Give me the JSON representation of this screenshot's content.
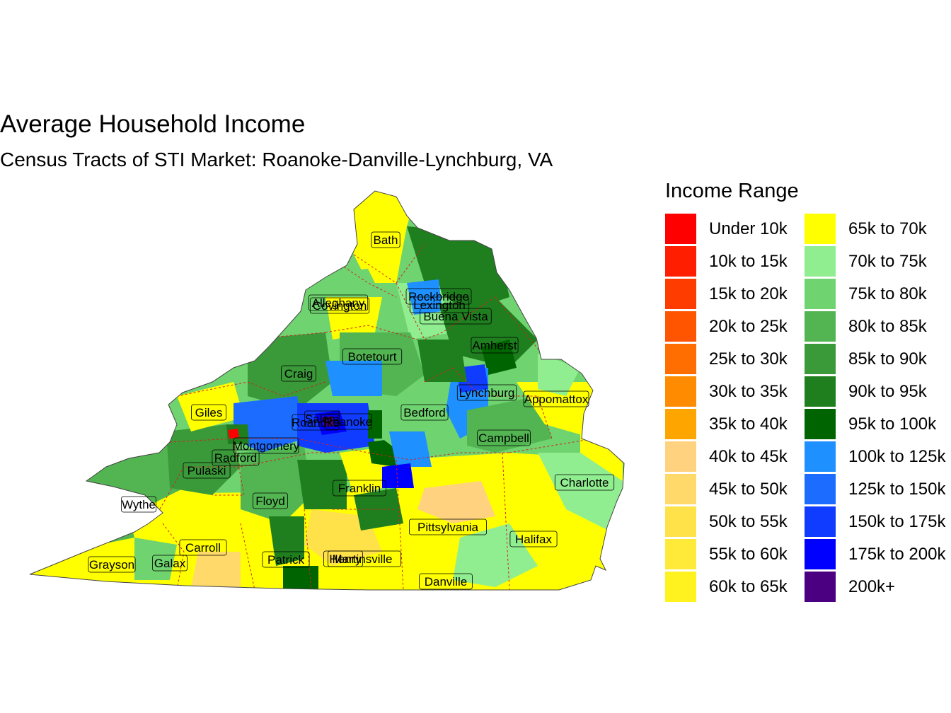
{
  "title": "Average Household Income",
  "subtitle": "Census Tracts of STI Market: Roanoke-Danville-Lynchburg, VA",
  "legend": {
    "title": "Income Range",
    "items": [
      {
        "label": "Under 10k",
        "color": "#ff0000"
      },
      {
        "label": "10k to 15k",
        "color": "#ff1e00"
      },
      {
        "label": "15k to 20k",
        "color": "#ff3c00"
      },
      {
        "label": "20k to 25k",
        "color": "#ff5500"
      },
      {
        "label": "25k to 30k",
        "color": "#ff6e00"
      },
      {
        "label": "30k to 35k",
        "color": "#ff8c00"
      },
      {
        "label": "35k to 40k",
        "color": "#ffa500"
      },
      {
        "label": "40k to 45k",
        "color": "#ffd27f"
      },
      {
        "label": "45k to 50k",
        "color": "#ffda6a"
      },
      {
        "label": "50k to 55k",
        "color": "#ffe14a"
      },
      {
        "label": "55k to 60k",
        "color": "#ffea3a"
      },
      {
        "label": "60k to 65k",
        "color": "#fff21e"
      },
      {
        "label": "65k to 70k",
        "color": "#ffff00"
      },
      {
        "label": "70k to 75k",
        "color": "#90ee90"
      },
      {
        "label": "75k to 80k",
        "color": "#6fd36f"
      },
      {
        "label": "80k to 85k",
        "color": "#52b552"
      },
      {
        "label": "85k to 90k",
        "color": "#3a9a3a"
      },
      {
        "label": "90k to 95k",
        "color": "#1f7f1f"
      },
      {
        "label": "95k to 100k",
        "color": "#006400"
      },
      {
        "label": "100k to 125k",
        "color": "#1e90ff"
      },
      {
        "label": "125k to 150k",
        "color": "#1c6cff"
      },
      {
        "label": "150k to 175k",
        "color": "#0f3cff"
      },
      {
        "label": "175k to 200k",
        "color": "#0000ff"
      },
      {
        "label": "200k+",
        "color": "#4b0082"
      }
    ]
  },
  "places": [
    {
      "name": "Bath"
    },
    {
      "name": "Alleghany"
    },
    {
      "name": "Covington"
    },
    {
      "name": "Rockbridge"
    },
    {
      "name": "Lexington"
    },
    {
      "name": "Buena Vista"
    },
    {
      "name": "Amherst"
    },
    {
      "name": "Botetourt"
    },
    {
      "name": "Craig"
    },
    {
      "name": "Lynchburg"
    },
    {
      "name": "Appomattox"
    },
    {
      "name": "Giles"
    },
    {
      "name": "Salem"
    },
    {
      "name": "Roanoke"
    },
    {
      "name": "Roanoke"
    },
    {
      "name": "Bedford"
    },
    {
      "name": "Montgomery"
    },
    {
      "name": "Campbell"
    },
    {
      "name": "Radford"
    },
    {
      "name": "Pulaski"
    },
    {
      "name": "Franklin"
    },
    {
      "name": "Charlotte"
    },
    {
      "name": "Wythe"
    },
    {
      "name": "Floyd"
    },
    {
      "name": "Pittsylvania"
    },
    {
      "name": "Halifax"
    },
    {
      "name": "Carroll"
    },
    {
      "name": "Grayson"
    },
    {
      "name": "Galax"
    },
    {
      "name": "Patrick"
    },
    {
      "name": "Henry"
    },
    {
      "name": "Martinsville"
    },
    {
      "name": "Danville"
    }
  ]
}
